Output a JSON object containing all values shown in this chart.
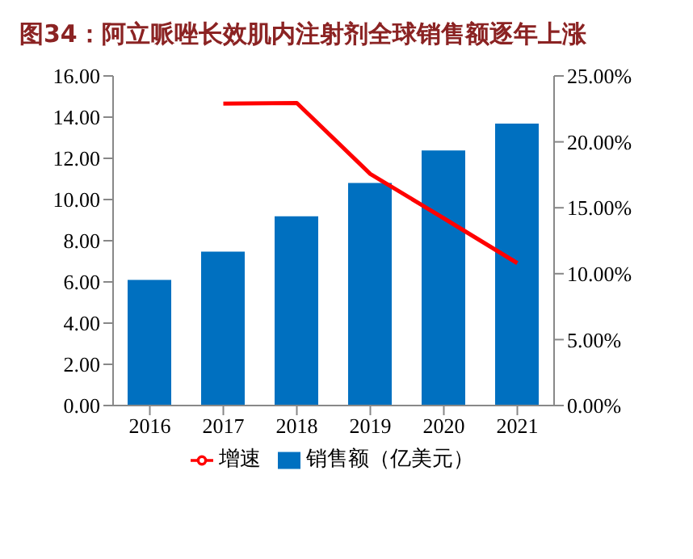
{
  "chart_data": {
    "type": "bar",
    "title": "图34：阿立哌唑长效肌内注射剂全球销售额逐年上涨",
    "categories": [
      "2016",
      "2017",
      "2018",
      "2019",
      "2020",
      "2021"
    ],
    "series": [
      {
        "name": "销售额（亿美元）",
        "color": "#0070c0",
        "values": [
          6.1,
          7.47,
          9.19,
          10.8,
          12.38,
          13.69
        ]
      },
      {
        "name": "增速",
        "type": "line",
        "axis": "y2",
        "color": "#ff0000",
        "values": [
          null,
          22.9,
          22.95,
          17.56,
          14.2,
          10.8
        ]
      }
    ],
    "ylim": [
      0,
      16
    ],
    "yticks": [
      {
        "value": 0,
        "label": "0.00"
      },
      {
        "value": 2,
        "label": "2.00"
      },
      {
        "value": 4,
        "label": "4.00"
      },
      {
        "value": 6,
        "label": "6.00"
      },
      {
        "value": 8,
        "label": "8.00"
      },
      {
        "value": 10,
        "label": "10.00"
      },
      {
        "value": 12,
        "label": "12.00"
      },
      {
        "value": 14,
        "label": "14.00"
      },
      {
        "value": 16,
        "label": "16.00"
      }
    ],
    "y2lim": [
      0,
      25
    ],
    "y2ticks": [
      {
        "value": 0,
        "label": "0.00%"
      },
      {
        "value": 5,
        "label": "5.00%"
      },
      {
        "value": 10,
        "label": "10.00%"
      },
      {
        "value": 15,
        "label": "15.00%"
      },
      {
        "value": 20,
        "label": "20.00%"
      },
      {
        "value": 25,
        "label": "25.00%"
      }
    ],
    "legend": "bottom",
    "grid": false,
    "marker": "none"
  }
}
